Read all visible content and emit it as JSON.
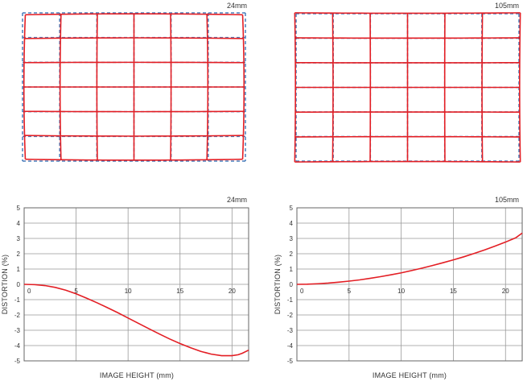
{
  "colors": {
    "distorted_grid": "#e31e24",
    "ideal_grid": "#4a7ebb",
    "curve": "#e31e24",
    "gridline": "#999999",
    "frame": "#666666"
  },
  "distortion_grids": [
    {
      "focal_label": "24mm",
      "type": "barrel",
      "columns": 6,
      "rows": 6
    },
    {
      "focal_label": "105mm",
      "type": "pincushion",
      "columns": 6,
      "rows": 6
    }
  ],
  "chart_data": [
    {
      "type": "line",
      "title": "24mm",
      "xlabel": "IMAGE HEIGHT (mm)",
      "ylabel": "DISTORTION (%)",
      "xlim": [
        0,
        21.6
      ],
      "ylim": [
        -5,
        5
      ],
      "x_ticks": [
        "0",
        "5",
        "10",
        "15",
        "20"
      ],
      "y_ticks": [
        "5",
        "4",
        "3",
        "2",
        "1",
        "0",
        "-1",
        "-2",
        "-3",
        "-4",
        "-5"
      ],
      "grid": true,
      "series": [
        {
          "x": [
            0,
            1,
            2,
            3,
            4,
            5,
            6,
            7,
            8,
            9,
            10,
            11,
            12,
            13,
            14,
            15,
            16,
            17,
            18,
            19,
            20,
            20.6,
            21,
            21.6
          ],
          "y": [
            0,
            -0.02,
            -0.08,
            -0.2,
            -0.38,
            -0.62,
            -0.9,
            -1.2,
            -1.52,
            -1.85,
            -2.2,
            -2.55,
            -2.9,
            -3.24,
            -3.57,
            -3.87,
            -4.14,
            -4.38,
            -4.56,
            -4.66,
            -4.66,
            -4.6,
            -4.5,
            -4.3
          ]
        }
      ]
    },
    {
      "type": "line",
      "title": "105mm",
      "xlabel": "IMAGE HEIGHT (mm)",
      "ylabel": "DISTORTION (%)",
      "xlim": [
        0,
        21.6
      ],
      "ylim": [
        -5,
        5
      ],
      "x_ticks": [
        "0",
        "5",
        "10",
        "15",
        "20"
      ],
      "y_ticks": [
        "5",
        "4",
        "3",
        "2",
        "1",
        "0",
        "-1",
        "-2",
        "-3",
        "-4",
        "-5"
      ],
      "grid": true,
      "series": [
        {
          "x": [
            0,
            1,
            2,
            3,
            4,
            5,
            6,
            7,
            8,
            9,
            10,
            11,
            12,
            13,
            14,
            15,
            16,
            17,
            18,
            19,
            20,
            21,
            21.6
          ],
          "y": [
            0,
            0.01,
            0.04,
            0.08,
            0.14,
            0.21,
            0.29,
            0.39,
            0.5,
            0.62,
            0.75,
            0.9,
            1.06,
            1.23,
            1.41,
            1.6,
            1.8,
            2.02,
            2.25,
            2.5,
            2.76,
            3.05,
            3.35
          ]
        }
      ]
    }
  ]
}
